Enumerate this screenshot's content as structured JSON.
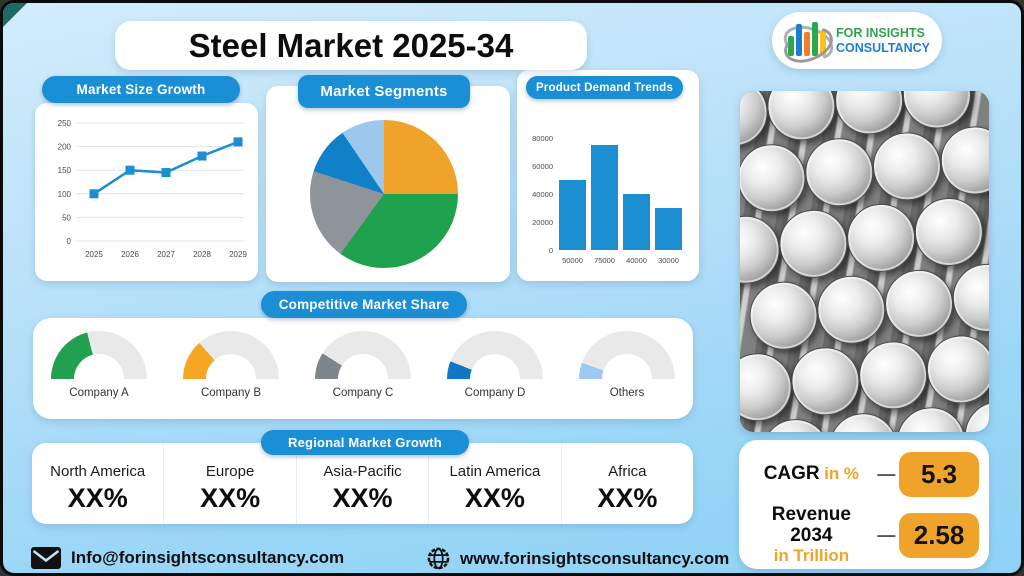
{
  "page_title": "Steel Market 2025-34",
  "logo": {
    "line1": "FOR INSIGHTS",
    "line2": "CONSULTANCY"
  },
  "chart_data": [
    {
      "type": "line",
      "title": "Market Size Growth",
      "x": [
        "2025",
        "2026",
        "2027",
        "2028",
        "2029"
      ],
      "values": [
        100,
        150,
        145,
        180,
        210
      ],
      "ylim": [
        0,
        250
      ],
      "yticks": [
        0,
        50,
        100,
        150,
        200,
        250
      ],
      "grid": true,
      "marker": "square",
      "color": "#1b8fd0"
    },
    {
      "type": "pie",
      "title": "Market Segments",
      "values": [
        25,
        35,
        20,
        10.5,
        9.5
      ],
      "colors": [
        "#f0a32b",
        "#1fa24e",
        "#8e9499",
        "#1080c8",
        "#9cc8ee"
      ],
      "start": "top-clockwise"
    },
    {
      "type": "bar",
      "title": "Product Demand Trends",
      "categories": [
        "50000",
        "75000",
        "40000",
        "30000"
      ],
      "values": [
        50000,
        75000,
        40000,
        30000
      ],
      "ylim": [
        0,
        80000
      ],
      "yticks": [
        0,
        20000,
        40000,
        60000,
        80000
      ],
      "grid": false,
      "color": "#1b8fd0"
    },
    {
      "type": "gauge",
      "title": "Competitive Market Share",
      "categories": [
        "Company A",
        "Company B",
        "Company C",
        "Company D",
        "Others"
      ],
      "values": [
        42,
        27,
        18,
        12,
        11
      ],
      "colors": [
        "#21a04f",
        "#f5a623",
        "#7e868c",
        "#1177c4",
        "#9ec9f0"
      ],
      "track_color": "#e9e9e9"
    }
  ],
  "regional": {
    "title": "Regional Market Growth",
    "regions": [
      {
        "name": "North America",
        "value": "XX%"
      },
      {
        "name": "Europe",
        "value": "XX%"
      },
      {
        "name": "Asia-Pacific",
        "value": "XX%"
      },
      {
        "name": "Latin America",
        "value": "XX%"
      },
      {
        "name": "Africa",
        "value": "XX%"
      }
    ]
  },
  "stats": {
    "cagr_label": "CAGR",
    "cagr_unit": "in %",
    "cagr_value": "5.3",
    "revenue_label": "Revenue 2034",
    "revenue_unit": "in Trillion",
    "revenue_value": "2.58",
    "dash": "—"
  },
  "footer": {
    "email": "Info@forinsightsconsultancy.com",
    "website": "www.forinsightsconsultancy.com"
  },
  "colors": {
    "header_pill": "#1a8fd6",
    "accent_orange": "#f0a32b",
    "chart_blue": "#1b8fd0",
    "background_top": "#d2ecfb",
    "background_bottom": "#8ed2f6"
  }
}
